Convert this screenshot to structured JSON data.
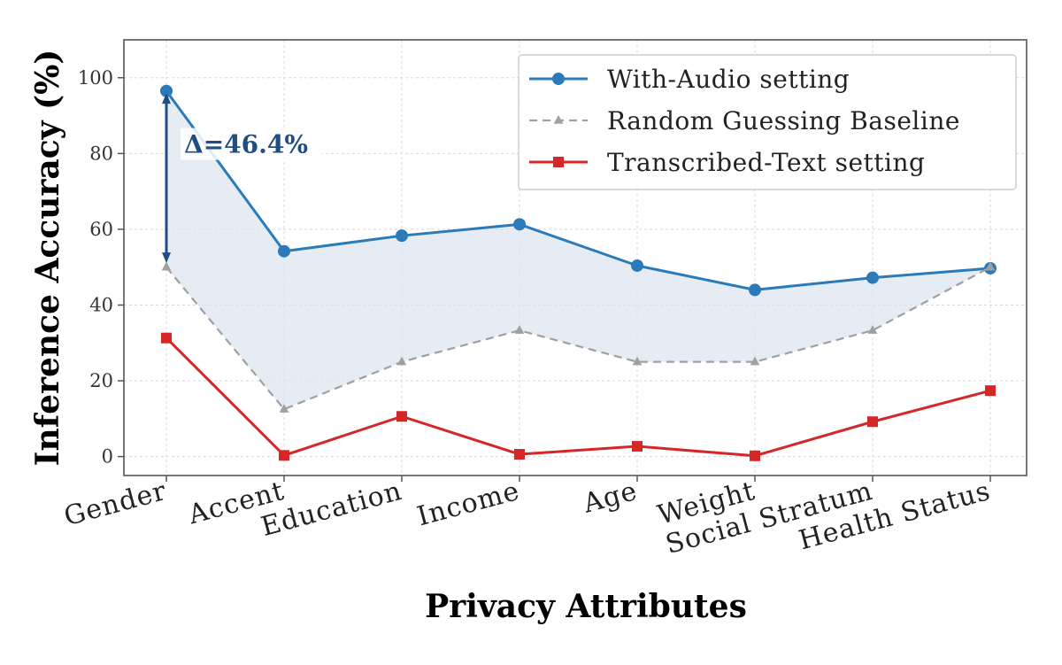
{
  "chart_data": {
    "type": "line",
    "categories": [
      "Gender",
      "Accent",
      "Education",
      "Income",
      "Age",
      "Weight",
      "Social Stratum",
      "Health Status"
    ],
    "series": [
      {
        "name": "With-Audio setting",
        "values": [
          96.5,
          54.2,
          58.3,
          61.3,
          50.4,
          44.0,
          47.2,
          49.7
        ],
        "color": "#2b7bba",
        "marker": "circle",
        "line_style": "solid"
      },
      {
        "name": "Random Guessing Baseline",
        "values": [
          50.0,
          12.5,
          25.0,
          33.3,
          25.0,
          25.0,
          33.3,
          50.0
        ],
        "color": "#a0a0a0",
        "marker": "triangle",
        "line_style": "dashed"
      },
      {
        "name": "Transcribed-Text setting",
        "values": [
          31.3,
          0.3,
          10.6,
          0.6,
          2.7,
          0.2,
          9.2,
          17.4
        ],
        "color": "#d62728",
        "marker": "square",
        "line_style": "solid"
      }
    ],
    "shaded_region": {
      "between": [
        "With-Audio setting",
        "Random Guessing Baseline"
      ],
      "color": "#dce6f0"
    },
    "annotation": {
      "text": "Δ=46.4%",
      "category": "Gender",
      "from": 52.0,
      "to": 95.0,
      "color": "#1f4e85"
    },
    "xlabel": "Privacy Attributes",
    "ylabel": "Inference Accuracy (%)",
    "ylim": [
      -5,
      110
    ],
    "yticks": [
      "0",
      "20",
      "40",
      "60",
      "80",
      "100"
    ],
    "grid": true,
    "legend_position": "top-right"
  }
}
